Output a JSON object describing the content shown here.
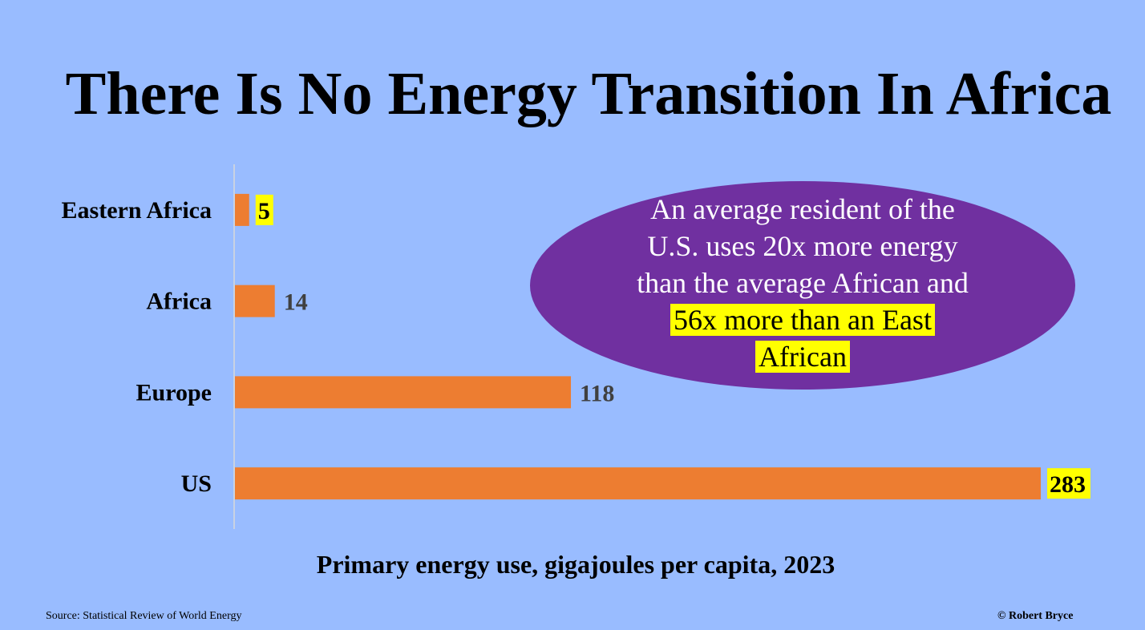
{
  "colors": {
    "background": "#99bcff",
    "bar": "#ed7d31",
    "callout_fill": "#7030a0",
    "highlight": "#ffff00",
    "label_plain": "#404040",
    "axis_line": "#d9d9d9"
  },
  "chart_data": {
    "type": "bar",
    "orientation": "horizontal",
    "title": "There Is No Energy Transition In Africa",
    "xlabel": "Primary energy use, gigajoules per capita, 2023",
    "ylabel": "",
    "categories": [
      "Eastern Africa",
      "Africa",
      "Europe",
      "US"
    ],
    "values": [
      5,
      14,
      118,
      283
    ],
    "value_labels": [
      "5",
      "14",
      "118",
      "283"
    ],
    "highlighted_labels": [
      true,
      false,
      false,
      true
    ],
    "xlim": [
      0,
      283
    ],
    "grid": false,
    "legend": "none"
  },
  "callout": {
    "lines": [
      "An average resident of the",
      "U.S. uses 20x more energy",
      "than the average African and"
    ],
    "highlight_lines": [
      "56x more than an East",
      "African"
    ]
  },
  "footer": {
    "source": "Source: Statistical Review of World Energy",
    "credit": "© Robert Bryce"
  }
}
